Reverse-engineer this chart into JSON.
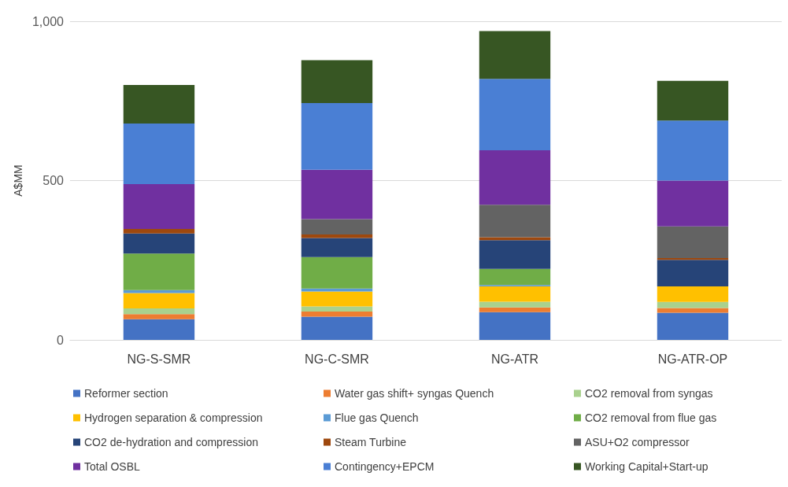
{
  "chart_data": {
    "type": "bar",
    "stacked": true,
    "ylabel": "A$MM",
    "categories": [
      "NG-S-SMR",
      "NG-C-SMR",
      "NG-ATR",
      "NG-ATR-OP"
    ],
    "ylim": [
      0,
      1000
    ],
    "yticks": [
      0,
      500,
      {
        "value": 1000,
        "label": "1,000"
      }
    ],
    "grid": "y",
    "legend": "bottom",
    "series": [
      {
        "name": "Reformer section",
        "color": "#4472c4",
        "values": [
          65,
          73,
          87,
          85
        ]
      },
      {
        "name": "Water gas shift+ syngas Quench",
        "color": "#ed7d31",
        "values": [
          16,
          16,
          15,
          15
        ]
      },
      {
        "name": "CO2 removal from syngas",
        "color": "#a9d18e",
        "values": [
          18,
          16,
          18,
          19
        ]
      },
      {
        "name": "Hydrogen separation & compression",
        "color": "#ffc000",
        "values": [
          48,
          47,
          48,
          49
        ]
      },
      {
        "name": "Flue gas Quench",
        "color": "#5b9bd5",
        "values": [
          9,
          9,
          4,
          0
        ]
      },
      {
        "name": "CO2 removal from flue gas",
        "color": "#70ad47",
        "values": [
          115,
          99,
          51,
          0
        ]
      },
      {
        "name": "CO2 de-hydration and compression",
        "color": "#264478",
        "values": [
          63,
          60,
          90,
          83
        ]
      },
      {
        "name": "Steam Turbine",
        "color": "#9e480e",
        "values": [
          14,
          11,
          9,
          6
        ]
      },
      {
        "name": "ASU+O2 compressor",
        "color": "#636363",
        "values": [
          0,
          48,
          102,
          99
        ]
      },
      {
        "name": "Total OSBL",
        "color": "#7030a0",
        "values": [
          141,
          155,
          171,
          144
        ]
      },
      {
        "name": "Contingency+EPCM",
        "color": "#4a7fd4",
        "values": [
          190,
          209,
          224,
          188
        ]
      },
      {
        "name": "Working Capital+Start-up",
        "color": "#375623",
        "values": [
          121,
          135,
          150,
          125
        ]
      }
    ]
  }
}
